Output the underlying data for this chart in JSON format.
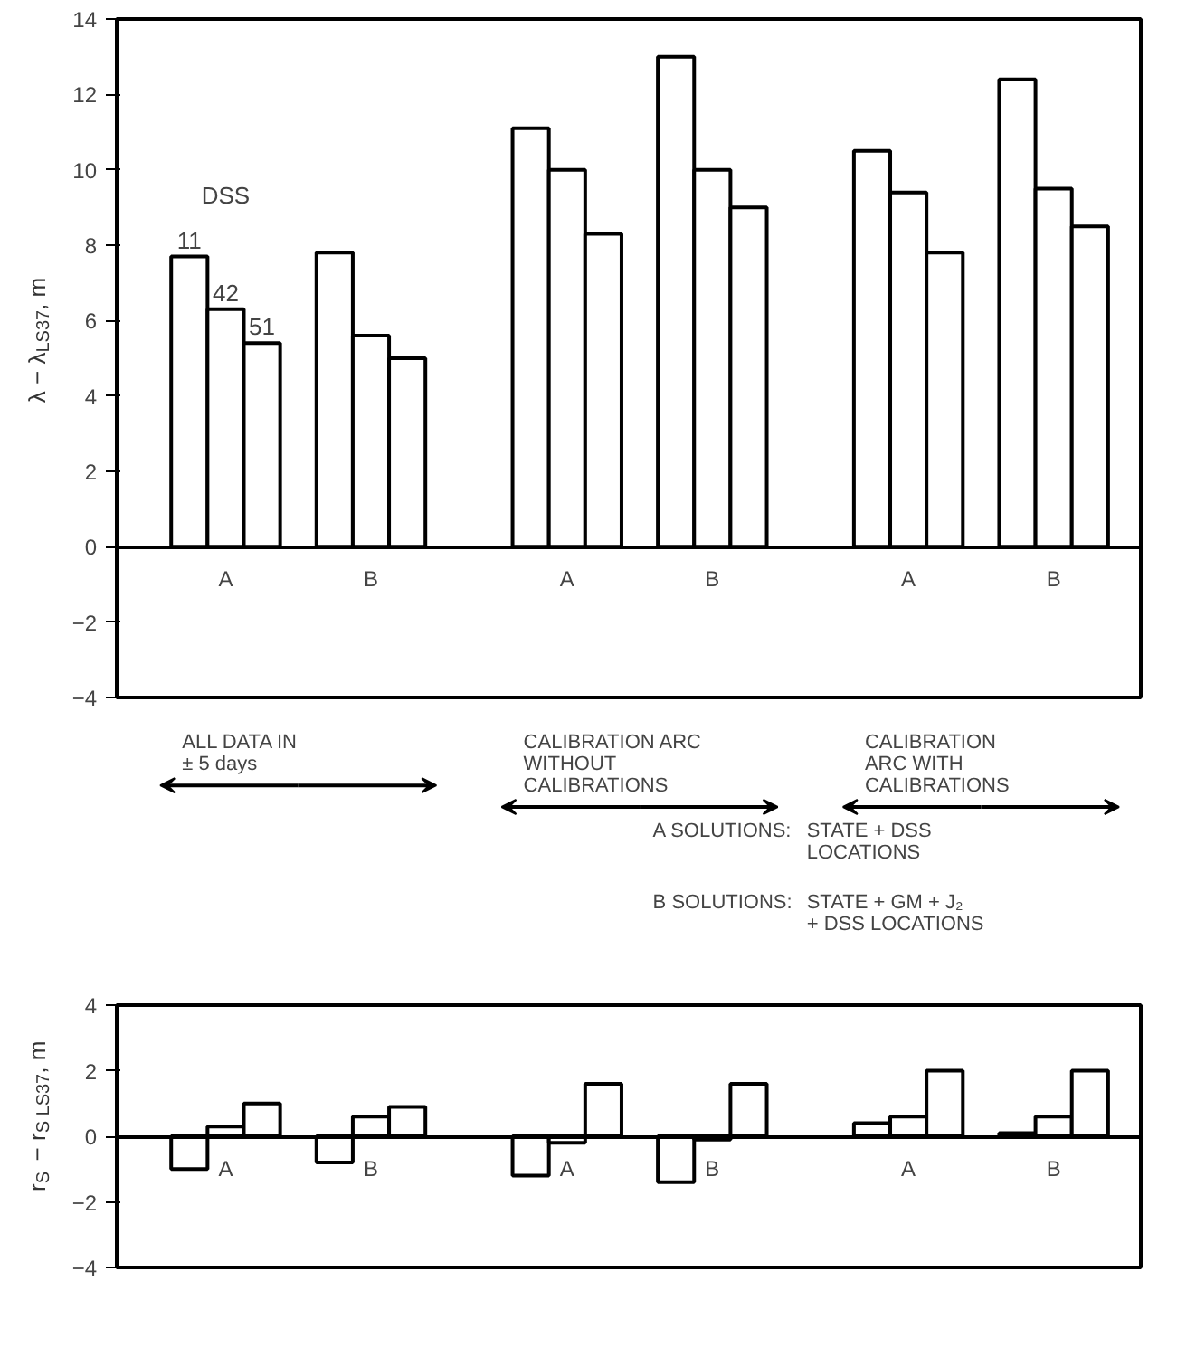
{
  "chart_data": [
    {
      "type": "bar",
      "ylabel": "λ − λ$_{LS37}$, m",
      "categories": [
        "A",
        "B",
        "A",
        "B",
        "A",
        "B"
      ],
      "ylim": [
        -4,
        14
      ],
      "yticks": [
        -4,
        -2,
        0,
        2,
        4,
        6,
        8,
        10,
        12,
        14
      ],
      "grid": false,
      "legend": false,
      "series": [
        {
          "name": "11",
          "color": "#ffffff",
          "values": [
            7.7,
            7.8,
            11.1,
            13.0,
            10.5,
            12.4
          ]
        },
        {
          "name": "42",
          "color": "#ffffff",
          "values": [
            6.3,
            5.6,
            10.0,
            10.0,
            9.4,
            9.5
          ]
        },
        {
          "name": "51",
          "color": "#ffffff",
          "values": [
            5.4,
            5.0,
            8.3,
            9.0,
            7.8,
            8.5
          ]
        }
      ],
      "annotations": [
        "DSS",
        "ALL DATA IN\n± 5 days",
        "CALIBRATION ARC\nWITHOUT\nCALIBRATIONS",
        "CALIBRATION\nARC WITH\nCALIBRATIONS",
        "A SOLUTIONS:",
        "STATE + DSS\nLOCATIONS",
        "B SOLUTIONS:",
        "STATE + GM + J₂\n+ DSS LOCATIONS"
      ]
    },
    {
      "type": "bar",
      "ylabel": "r$_{S}$ − r$_{S LS37}$, m",
      "categories": [
        "A",
        "B",
        "A",
        "B",
        "A",
        "B"
      ],
      "ylim": [
        -4,
        4
      ],
      "yticks": [
        -4,
        -2,
        0,
        2,
        4
      ],
      "grid": false,
      "legend": false,
      "series": [
        {
          "color": "#ffffff",
          "values": [
            -1.0,
            -0.8,
            -1.2,
            -1.4,
            0.4,
            0.1
          ]
        },
        {
          "color": "#ffffff",
          "values": [
            0.3,
            0.6,
            -0.2,
            -0.1,
            0.6,
            0.6
          ]
        },
        {
          "color": "#ffffff",
          "values": [
            1.0,
            0.9,
            1.6,
            1.6,
            2.0,
            2.0
          ]
        }
      ]
    }
  ]
}
